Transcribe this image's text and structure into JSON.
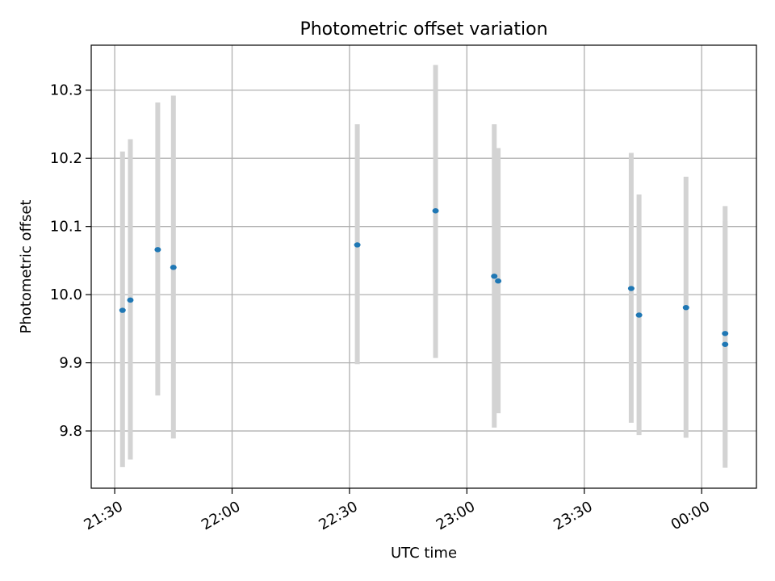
{
  "chart_data": {
    "type": "scatter",
    "title": "Photometric offset variation",
    "xlabel": "UTC time",
    "ylabel": "Photometric offset",
    "x_axis_kind": "time",
    "xlim": [
      "21:24",
      "00:14"
    ],
    "ylim": [
      9.716,
      10.366
    ],
    "grid": true,
    "x_ticks": [
      {
        "time": "21:30",
        "label": "21:30"
      },
      {
        "time": "22:00",
        "label": "22:00"
      },
      {
        "time": "22:30",
        "label": "22:30"
      },
      {
        "time": "23:00",
        "label": "23:00"
      },
      {
        "time": "23:30",
        "label": "23:30"
      },
      {
        "time": "00:00",
        "label": "00:00"
      }
    ],
    "y_ticks": [
      {
        "value": 9.8,
        "label": "9.8"
      },
      {
        "value": 9.9,
        "label": "9.9"
      },
      {
        "value": 10.0,
        "label": "10.0"
      },
      {
        "value": 10.1,
        "label": "10.1"
      },
      {
        "value": 10.2,
        "label": "10.2"
      },
      {
        "value": 10.3,
        "label": "10.3"
      }
    ],
    "series": [
      {
        "marker_color": "#1f77b4",
        "errorbar_color": "#d3d3d3",
        "points": [
          {
            "x": "21:32",
            "y": 9.977,
            "ylow": 9.747,
            "yhigh": 10.21
          },
          {
            "x": "21:34",
            "y": 9.992,
            "ylow": 9.758,
            "yhigh": 10.228
          },
          {
            "x": "21:41",
            "y": 10.066,
            "ylow": 9.852,
            "yhigh": 10.282
          },
          {
            "x": "21:45",
            "y": 10.04,
            "ylow": 9.789,
            "yhigh": 10.292
          },
          {
            "x": "22:32",
            "y": 10.073,
            "ylow": 9.898,
            "yhigh": 10.25
          },
          {
            "x": "22:52",
            "y": 10.123,
            "ylow": 9.907,
            "yhigh": 10.337
          },
          {
            "x": "23:07",
            "y": 10.027,
            "ylow": 9.805,
            "yhigh": 10.25
          },
          {
            "x": "23:08",
            "y": 10.02,
            "ylow": 9.826,
            "yhigh": 10.215
          },
          {
            "x": "23:42",
            "y": 10.009,
            "ylow": 9.812,
            "yhigh": 10.208
          },
          {
            "x": "23:44",
            "y": 9.97,
            "ylow": 9.794,
            "yhigh": 10.147
          },
          {
            "x": "23:56",
            "y": 9.981,
            "ylow": 9.79,
            "yhigh": 10.173
          },
          {
            "x": "00:06",
            "y": 9.943,
            "ylow": 9.757,
            "yhigh": 10.13
          },
          {
            "x": "00:06",
            "y": 9.927,
            "ylow": 9.746,
            "yhigh": 10.108
          }
        ]
      }
    ]
  }
}
